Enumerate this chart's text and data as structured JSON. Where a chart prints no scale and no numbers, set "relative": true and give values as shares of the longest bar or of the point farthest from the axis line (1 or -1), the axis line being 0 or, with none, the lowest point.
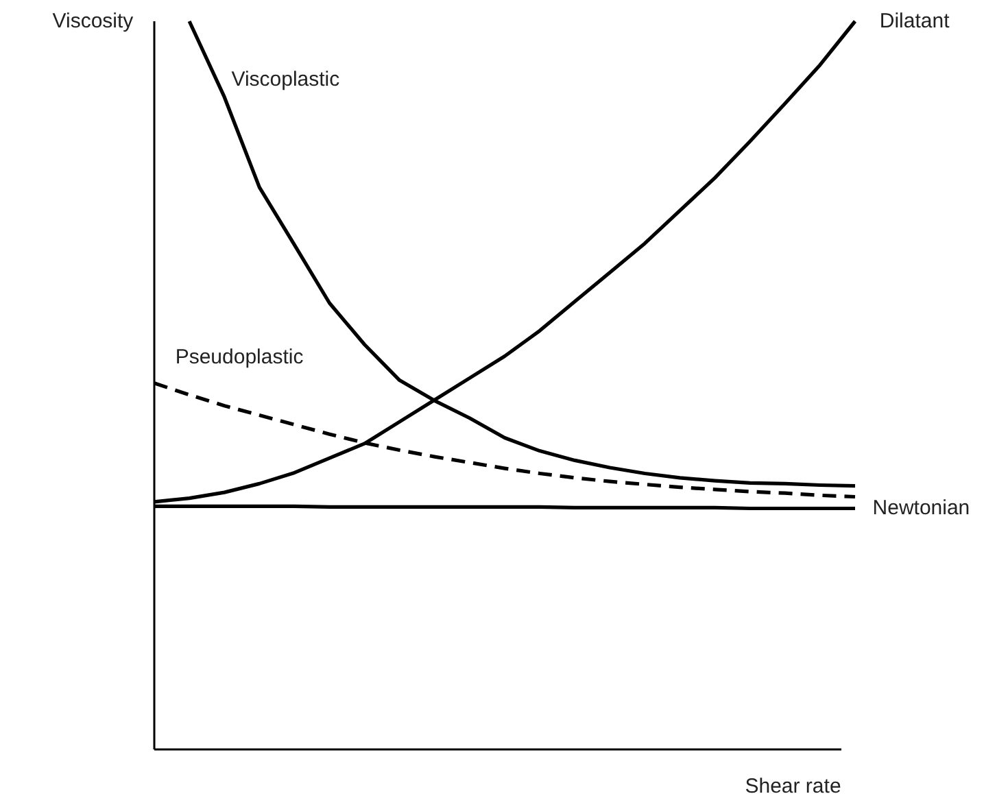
{
  "chart_data": {
    "type": "line",
    "relative": true,
    "xlabel": "Shear rate",
    "ylabel": "Viscosity",
    "grid": false,
    "marker": "none",
    "categories": [
      null,
      null,
      null,
      null,
      null,
      null,
      null,
      null,
      null,
      null,
      null,
      null,
      null,
      null,
      null,
      null,
      null,
      null,
      null,
      null,
      null
    ],
    "series": [
      {
        "name": "Viscoplastic",
        "color": "#000000",
        "line_style": "solid",
        "values": [
          null,
          1.0,
          0.896,
          0.772,
          0.693,
          0.613,
          0.556,
          0.507,
          0.479,
          0.455,
          0.428,
          0.41,
          0.397,
          0.387,
          0.379,
          0.373,
          0.369,
          0.366,
          0.365,
          0.363,
          0.362
        ]
      },
      {
        "name": "Dilatant",
        "color": "#000000",
        "line_style": "solid",
        "values": [
          0.34,
          0.345,
          0.353,
          0.365,
          0.38,
          0.4,
          0.42,
          0.45,
          0.48,
          0.51,
          0.54,
          0.575,
          0.615,
          0.655,
          0.695,
          0.74,
          0.785,
          0.835,
          0.887,
          0.94,
          1.0
        ]
      },
      {
        "name": "Pseudoplastic",
        "color": "#000000",
        "line_style": "dashed",
        "values": [
          0.503,
          0.487,
          0.472,
          0.459,
          0.446,
          0.433,
          0.421,
          0.411,
          0.402,
          0.394,
          0.386,
          0.379,
          0.373,
          0.368,
          0.364,
          0.36,
          0.357,
          0.354,
          0.352,
          0.349,
          0.347
        ]
      },
      {
        "name": "Newtonian",
        "color": "#000000",
        "line_style": "solid",
        "values": [
          0.334,
          0.334,
          0.334,
          0.334,
          0.334,
          0.333,
          0.333,
          0.333,
          0.333,
          0.333,
          0.333,
          0.333,
          0.332,
          0.332,
          0.332,
          0.332,
          0.332,
          0.331,
          0.331,
          0.331,
          0.331
        ]
      }
    ]
  }
}
